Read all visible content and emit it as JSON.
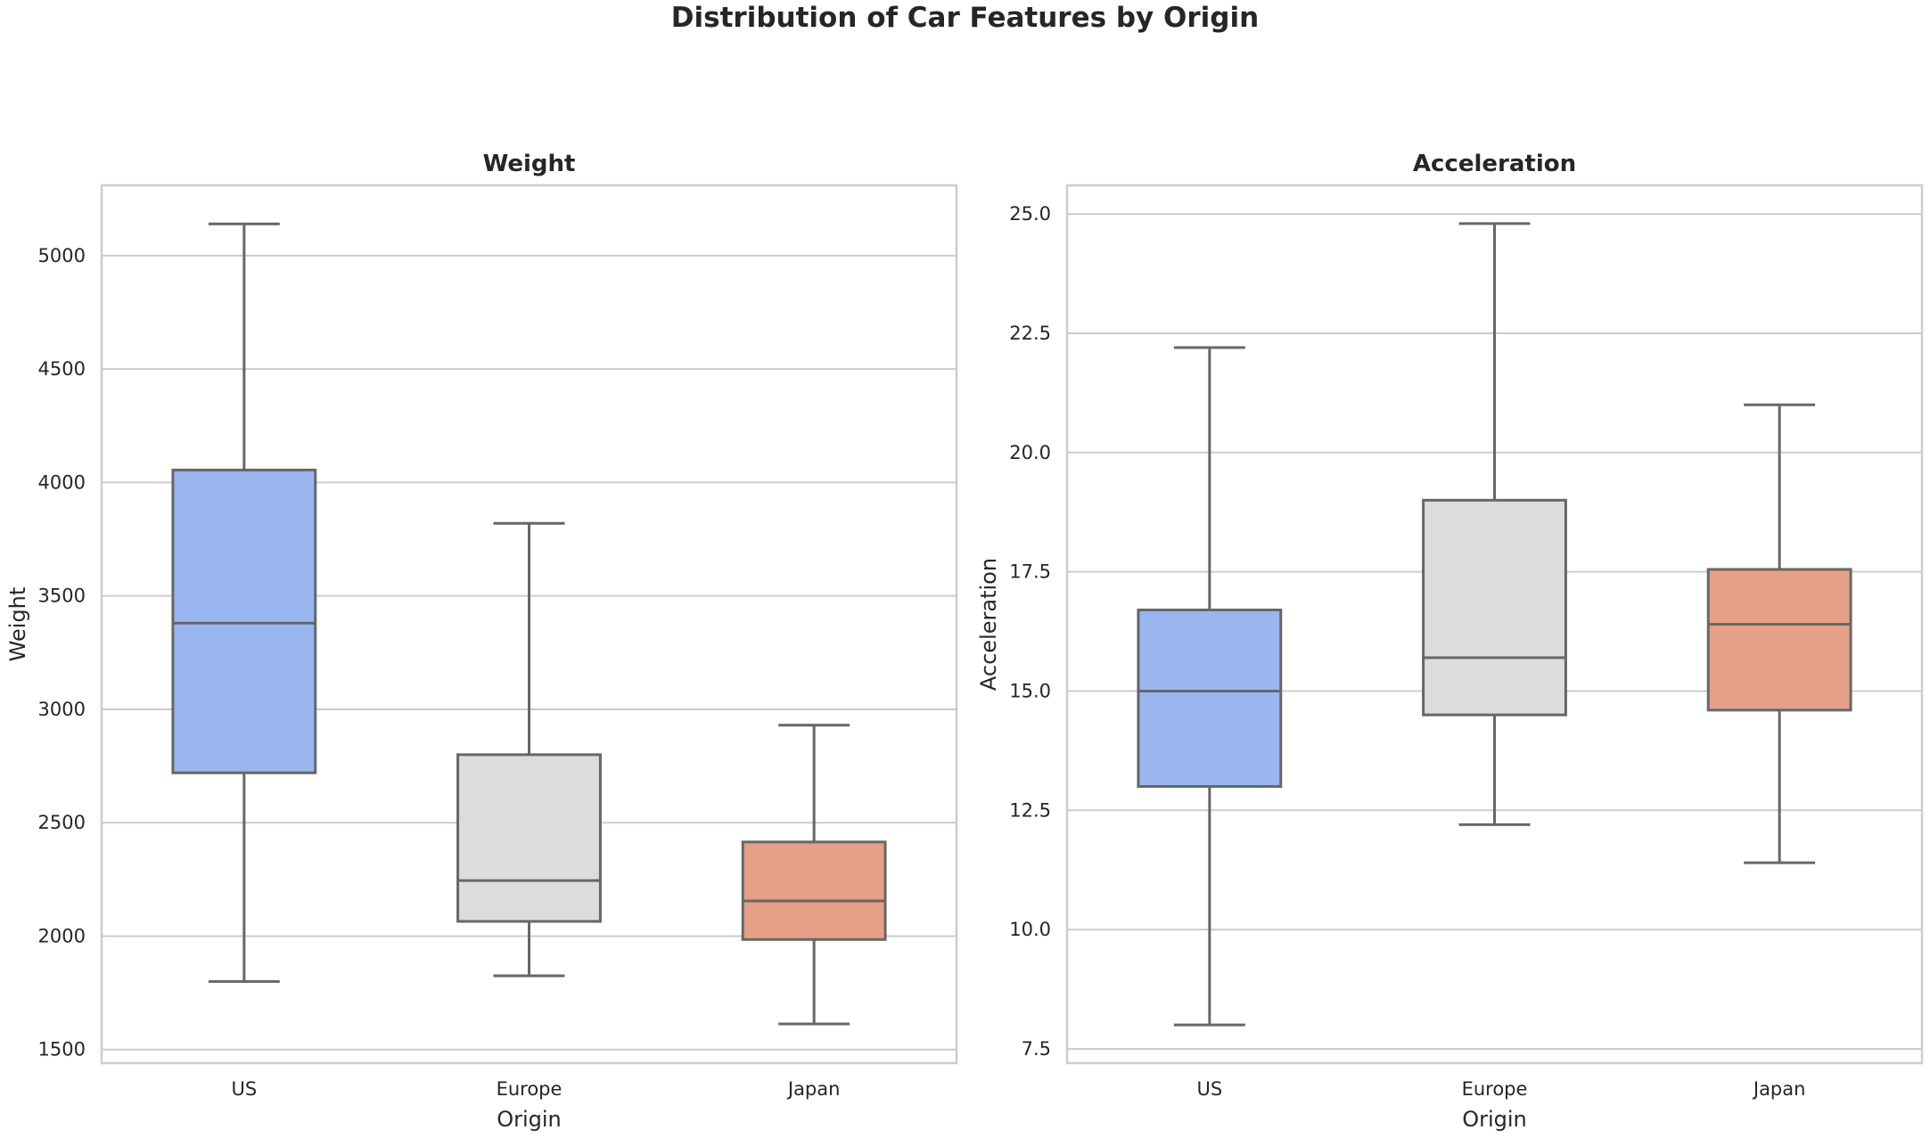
{
  "figure": {
    "title": "Distribution of Car Features by Origin"
  },
  "colors": {
    "US": "#9ab6f0",
    "Europe": "#dcdcdc",
    "Japan": "#e5a087",
    "line": "#676767",
    "grid": "#cccccc",
    "frame": "#cccccc"
  },
  "chart_data": [
    {
      "type": "box",
      "title": "Weight",
      "xlabel": "Origin",
      "ylabel": "Weight",
      "ylim": [
        1440,
        5310
      ],
      "yticks": [
        1500,
        2000,
        2500,
        3000,
        3500,
        4000,
        4500,
        5000
      ],
      "ytick_labels": [
        "1500",
        "2000",
        "2500",
        "3000",
        "3500",
        "4000",
        "4500",
        "5000"
      ],
      "categories": [
        "US",
        "Europe",
        "Japan"
      ],
      "boxes": [
        {
          "name": "US",
          "whisker_low": 1800,
          "q1": 2720,
          "median": 3380,
          "q3": 4055,
          "whisker_high": 5140
        },
        {
          "name": "Europe",
          "whisker_low": 1825,
          "q1": 2065,
          "median": 2245,
          "q3": 2800,
          "whisker_high": 3820
        },
        {
          "name": "Japan",
          "whisker_low": 1613,
          "q1": 1985,
          "median": 2155,
          "q3": 2415,
          "whisker_high": 2930
        }
      ],
      "grid": true
    },
    {
      "type": "box",
      "title": "Acceleration",
      "xlabel": "Origin",
      "ylabel": "Acceleration",
      "ylim": [
        7.2,
        25.6
      ],
      "yticks": [
        7.5,
        10.0,
        12.5,
        15.0,
        17.5,
        20.0,
        22.5,
        25.0
      ],
      "ytick_labels": [
        "7.5",
        "10.0",
        "12.5",
        "15.0",
        "17.5",
        "20.0",
        "22.5",
        "25.0"
      ],
      "categories": [
        "US",
        "Europe",
        "Japan"
      ],
      "boxes": [
        {
          "name": "US",
          "whisker_low": 8.0,
          "q1": 13.0,
          "median": 15.0,
          "q3": 16.7,
          "whisker_high": 22.2
        },
        {
          "name": "Europe",
          "whisker_low": 12.2,
          "q1": 14.5,
          "median": 15.7,
          "q3": 19.0,
          "whisker_high": 24.8
        },
        {
          "name": "Japan",
          "whisker_low": 11.4,
          "q1": 14.6,
          "median": 16.4,
          "q3": 17.55,
          "whisker_high": 21.0
        }
      ],
      "grid": true
    }
  ]
}
